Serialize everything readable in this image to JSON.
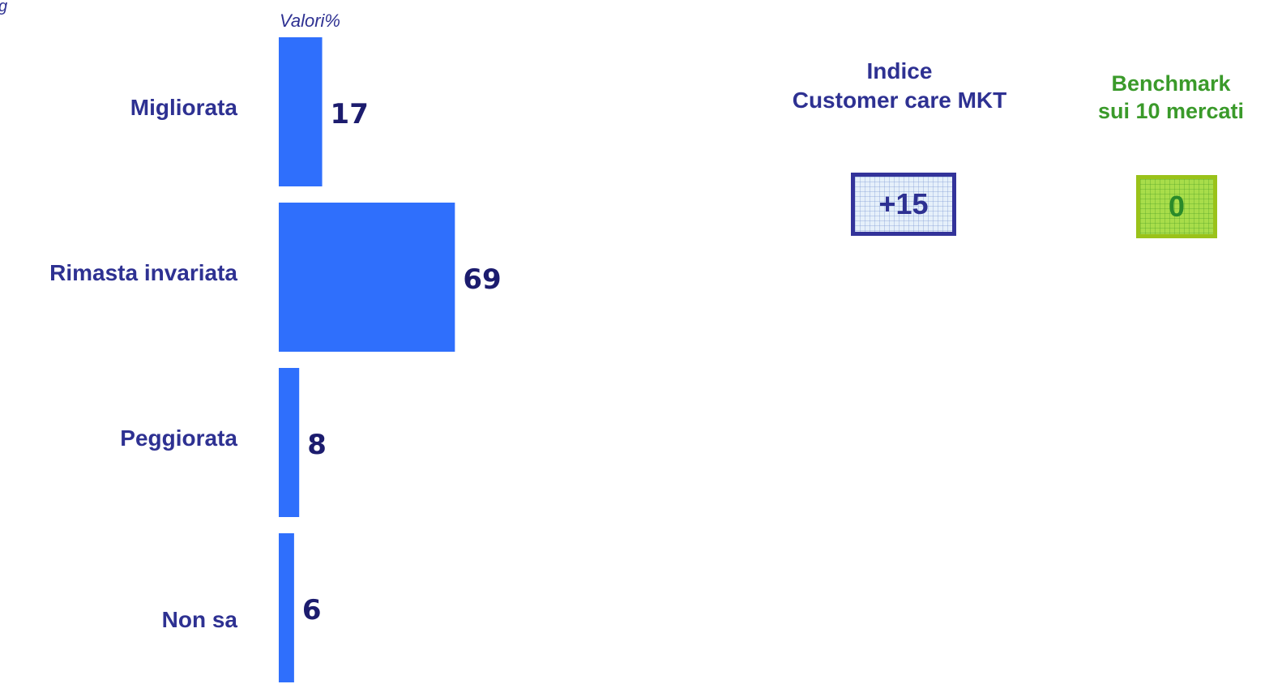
{
  "edge_text": "g",
  "chart_data": {
    "type": "bar",
    "orientation": "horizontal",
    "unit_label": "Valori%",
    "categories": [
      "Migliorata",
      "Rimasta invariata",
      "Peggiorata",
      "Non sa"
    ],
    "values": [
      17,
      69,
      8,
      6
    ],
    "title": "",
    "xlabel": "",
    "ylabel": "",
    "xlim": [
      0,
      100
    ],
    "grid": false,
    "legend": "none",
    "bar_color": "#2f6ffc",
    "label_color": "#2e3192",
    "value_color": "#1c1c6e"
  },
  "index": {
    "title": "Indice\nCustomer care MKT",
    "value": "+15",
    "border_color": "#33339a"
  },
  "benchmark": {
    "title": "Benchmark\n sui 10 mercati",
    "value": "0",
    "color": "#3a9a2a",
    "box_color": "#a8dd4a"
  }
}
